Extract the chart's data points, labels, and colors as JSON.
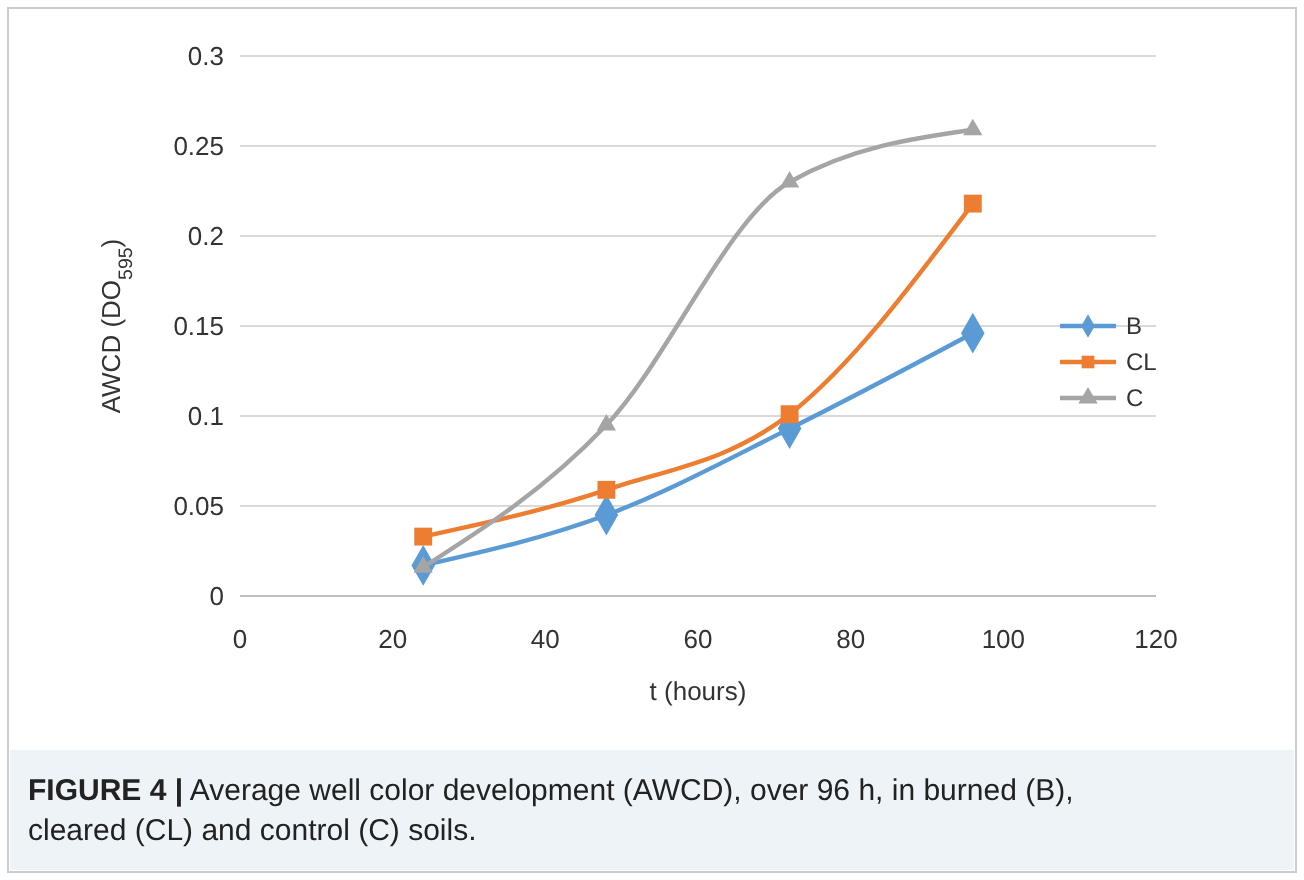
{
  "chart_data": {
    "type": "line",
    "xlabel": "t (hours)",
    "ylabel": "AWCD (DO$_{595}$)",
    "x": [
      24,
      48,
      72,
      96
    ],
    "series": [
      {
        "name": "B",
        "color": "#5b9bd5",
        "marker": "diamond",
        "values": [
          0.017,
          0.045,
          0.093,
          0.146
        ]
      },
      {
        "name": "CL",
        "color": "#ed7d31",
        "marker": "square",
        "values": [
          0.033,
          0.059,
          0.101,
          0.218
        ]
      },
      {
        "name": "C",
        "color": "#a5a5a5",
        "marker": "triangle",
        "values": [
          0.016,
          0.095,
          0.23,
          0.259
        ]
      }
    ],
    "xlim": [
      0,
      120
    ],
    "xticks": [
      0,
      20,
      40,
      60,
      80,
      100,
      120
    ],
    "ylim": [
      0,
      0.3
    ],
    "yticks": [
      {
        "value": 0,
        "label": "0"
      },
      {
        "value": 0.05,
        "label": "0.05"
      },
      {
        "value": 0.1,
        "label": "0.1"
      },
      {
        "value": 0.15,
        "label": "0.15"
      },
      {
        "value": 0.2,
        "label": "0.2"
      },
      {
        "value": 0.25,
        "label": "0.25"
      },
      {
        "value": 0.3,
        "label": "0.3"
      }
    ],
    "grid": "y",
    "legend": "right",
    "annotations": [
      "FIGURE 4 | Average well color development (AWCD), over 96 h, in burned (B), cleared (CL) and control (C) soils."
    ]
  }
}
